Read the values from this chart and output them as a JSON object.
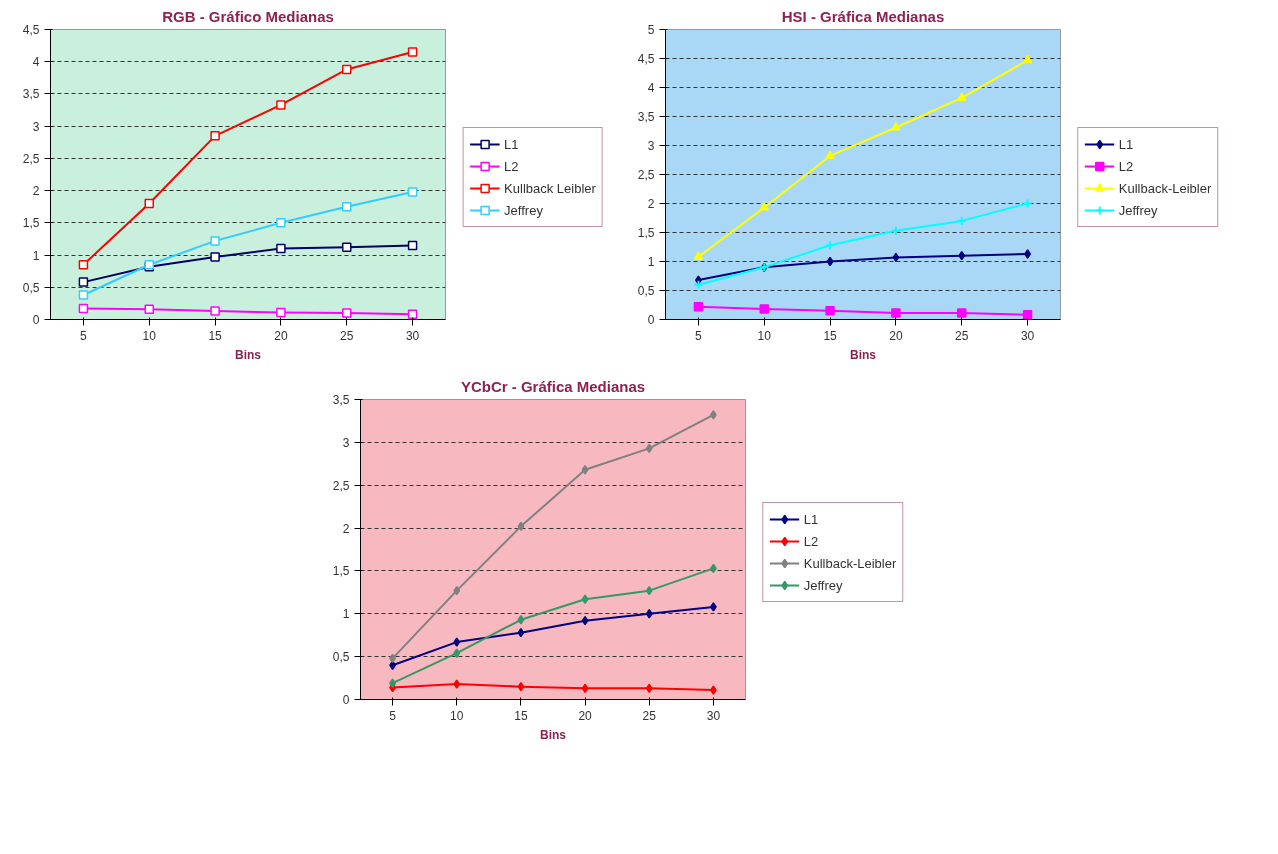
{
  "chart_data": [
    {
      "type": "line",
      "title": "RGB - Gráfico Medianas",
      "xlabel": "Bins",
      "categories": [
        "5",
        "10",
        "15",
        "20",
        "25",
        "30"
      ],
      "ylim": [
        0,
        4.5
      ],
      "yticks": [
        {
          "value": 0,
          "label": "0"
        },
        {
          "value": 0.5,
          "label": "0,5"
        },
        {
          "value": 1,
          "label": "1"
        },
        {
          "value": 1.5,
          "label": "1,5"
        },
        {
          "value": 2,
          "label": "2"
        },
        {
          "value": 2.5,
          "label": "2,5"
        },
        {
          "value": 3,
          "label": "3"
        },
        {
          "value": 3.5,
          "label": "3,5"
        },
        {
          "value": 4,
          "label": "4"
        },
        {
          "value": 4.5,
          "label": "4,5"
        }
      ],
      "grid": "y",
      "legend": "right",
      "marker": "square",
      "line_style": "solid",
      "series": [
        {
          "name": "L1",
          "color": "#000066",
          "values": [
            0.58,
            0.82,
            0.97,
            1.1,
            1.12,
            1.15
          ]
        },
        {
          "name": "L2",
          "color": "#ff00ff",
          "values": [
            0.17,
            0.16,
            0.13,
            0.11,
            0.1,
            0.08
          ]
        },
        {
          "name": "Kullback Leibler",
          "color": "#ff0000",
          "values": [
            0.85,
            1.8,
            2.85,
            3.33,
            3.88,
            4.15
          ]
        },
        {
          "name": "Jeffrey",
          "color": "#33ccff",
          "values": [
            0.38,
            0.85,
            1.22,
            1.5,
            1.75,
            1.98
          ]
        }
      ]
    },
    {
      "type": "line",
      "title": "HSI - Gráfica Medianas",
      "xlabel": "Bins",
      "categories": [
        "5",
        "10",
        "15",
        "20",
        "25",
        "30"
      ],
      "ylim": [
        0,
        5
      ],
      "yticks": [
        {
          "value": 0,
          "label": "0"
        },
        {
          "value": 0.5,
          "label": "0,5"
        },
        {
          "value": 1,
          "label": "1"
        },
        {
          "value": 1.5,
          "label": "1,5"
        },
        {
          "value": 2,
          "label": "2"
        },
        {
          "value": 2.5,
          "label": "2,5"
        },
        {
          "value": 3,
          "label": "3"
        },
        {
          "value": 3.5,
          "label": "3,5"
        },
        {
          "value": 4,
          "label": "4"
        },
        {
          "value": 4.5,
          "label": "4,5"
        },
        {
          "value": 5,
          "label": "5"
        }
      ],
      "grid": "y",
      "legend": "right",
      "line_style": "solid",
      "series": [
        {
          "name": "L1",
          "color": "#000080",
          "marker": "diamond",
          "values": [
            0.68,
            0.9,
            1.0,
            1.07,
            1.1,
            1.13
          ]
        },
        {
          "name": "L2",
          "color": "#ff00ff",
          "marker": "square",
          "values": [
            0.22,
            0.18,
            0.15,
            0.11,
            0.11,
            0.08
          ]
        },
        {
          "name": "Kullback-Leibler",
          "color": "#ffff00",
          "marker": "triangle",
          "values": [
            1.08,
            1.93,
            2.82,
            3.31,
            3.82,
            4.47
          ]
        },
        {
          "name": "Jeffrey",
          "color": "#00ffff",
          "marker": "cross",
          "values": [
            0.6,
            0.9,
            1.28,
            1.53,
            1.7,
            2.0
          ]
        }
      ]
    },
    {
      "type": "line",
      "title": "YCbCr - Gráfica Medianas",
      "xlabel": "Bins",
      "categories": [
        "5",
        "10",
        "15",
        "20",
        "25",
        "30"
      ],
      "ylim": [
        0,
        3.5
      ],
      "yticks": [
        {
          "value": 0,
          "label": "0"
        },
        {
          "value": 0.5,
          "label": "0,5"
        },
        {
          "value": 1,
          "label": "1"
        },
        {
          "value": 1.5,
          "label": "1,5"
        },
        {
          "value": 2,
          "label": "2"
        },
        {
          "value": 2.5,
          "label": "2,5"
        },
        {
          "value": 3,
          "label": "3"
        },
        {
          "value": 3.5,
          "label": "3,5"
        }
      ],
      "grid": "y",
      "legend": "right",
      "marker": "diamond",
      "line_style": "solid",
      "series": [
        {
          "name": "L1",
          "color": "#000080",
          "values": [
            0.4,
            0.67,
            0.78,
            0.92,
            1.0,
            1.08
          ]
        },
        {
          "name": "L2",
          "color": "#ff0000",
          "values": [
            0.14,
            0.18,
            0.15,
            0.13,
            0.13,
            0.11
          ]
        },
        {
          "name": "Kullback-Leibler",
          "color": "#808080",
          "values": [
            0.48,
            1.27,
            2.02,
            2.68,
            2.93,
            3.32
          ]
        },
        {
          "name": "Jeffrey",
          "color": "#339966",
          "values": [
            0.19,
            0.54,
            0.93,
            1.17,
            1.27,
            1.53
          ]
        }
      ]
    }
  ]
}
